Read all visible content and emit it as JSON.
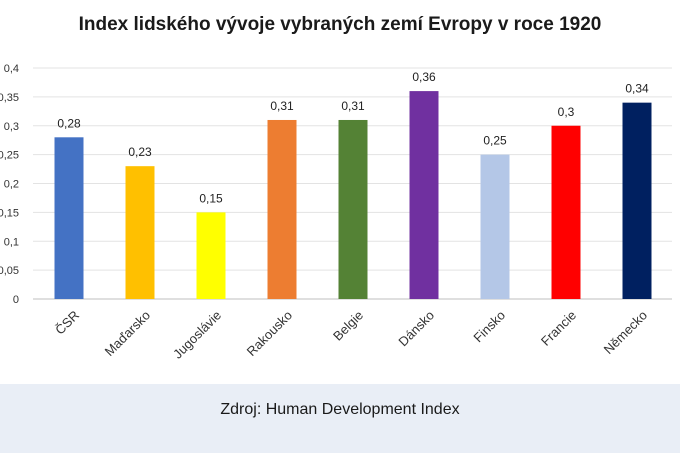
{
  "chart_data": {
    "type": "bar",
    "title": "Index lidského vývoje vybraných zemí Evropy v roce 1920",
    "categories": [
      "ČSR",
      "Maďarsko",
      "Jugoslávie",
      "Rakousko",
      "Belgie",
      "Dánsko",
      "Finsko",
      "Francie",
      "Německo"
    ],
    "values": [
      0.28,
      0.23,
      0.15,
      0.31,
      0.31,
      0.36,
      0.25,
      0.3,
      0.34
    ],
    "value_labels": [
      "0,28",
      "0,23",
      "0,15",
      "0,31",
      "0,31",
      "0,36",
      "0,25",
      "0,3",
      "0,34"
    ],
    "colors": [
      "#4472c4",
      "#ffc000",
      "#ffff00",
      "#ed7d31",
      "#548235",
      "#7030a0",
      "#b4c7e7",
      "#ff0000",
      "#002060"
    ],
    "yticks": [
      0,
      0.05,
      0.1,
      0.15,
      0.2,
      0.25,
      0.3,
      0.35,
      0.4
    ],
    "ytick_labels": [
      "0",
      "0,05",
      "0,1",
      "0,15",
      "0,2",
      "0,25",
      "0,3",
      "0,35",
      "0,4"
    ],
    "ylim": [
      0,
      0.4
    ],
    "grid": true,
    "legend": "none"
  },
  "source": "Zdroj: Human Development Index"
}
